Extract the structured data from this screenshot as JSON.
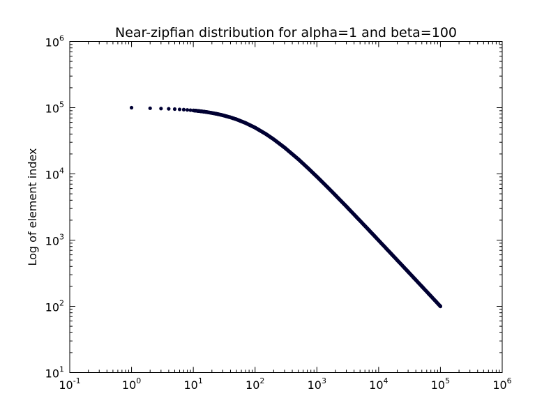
{
  "chart_data": {
    "type": "scatter",
    "title": "Near-zipfian distribution for alpha=1 and beta=100",
    "xlabel": "",
    "ylabel": "Log of element index",
    "x_scale": "log",
    "y_scale": "log",
    "xlim": [
      0.1,
      1000000
    ],
    "ylim": [
      10,
      1000000
    ],
    "x_ticks": [
      {
        "base": "10",
        "exp": "-1",
        "value": 0.1
      },
      {
        "base": "10",
        "exp": "0",
        "value": 1
      },
      {
        "base": "10",
        "exp": "1",
        "value": 10
      },
      {
        "base": "10",
        "exp": "2",
        "value": 100
      },
      {
        "base": "10",
        "exp": "3",
        "value": 1000
      },
      {
        "base": "10",
        "exp": "4",
        "value": 10000
      },
      {
        "base": "10",
        "exp": "5",
        "value": 100000
      },
      {
        "base": "10",
        "exp": "6",
        "value": 1000000
      }
    ],
    "y_ticks": [
      {
        "base": "10",
        "exp": "1",
        "value": 10
      },
      {
        "base": "10",
        "exp": "2",
        "value": 100
      },
      {
        "base": "10",
        "exp": "3",
        "value": 1000
      },
      {
        "base": "10",
        "exp": "4",
        "value": 10000
      },
      {
        "base": "10",
        "exp": "5",
        "value": 100000
      },
      {
        "base": "10",
        "exp": "6",
        "value": 1000000
      }
    ],
    "grid": false,
    "marker_color": "#000033",
    "series": [
      {
        "x": [
          1,
          2,
          3,
          4,
          5,
          6,
          7,
          8,
          9,
          10,
          11,
          12,
          13,
          14,
          15,
          17,
          20,
          25,
          30,
          40,
          50,
          70,
          100,
          150,
          200,
          300,
          500,
          700,
          1000,
          1500,
          2000,
          3000,
          5000,
          7000,
          10000,
          15000,
          20000,
          30000,
          50000,
          70000,
          100000
        ],
        "y": [
          100000,
          98000,
          97000,
          96100,
          95200,
          94300,
          93500,
          92600,
          91700,
          90900,
          90100,
          89300,
          88500,
          87700,
          87000,
          85500,
          83300,
          80000,
          76900,
          71400,
          66700,
          58800,
          50000,
          40000,
          33300,
          25000,
          16700,
          12500,
          9090,
          6250,
          4760,
          3230,
          1960,
          1410,
          990,
          662,
          498,
          333,
          200,
          143,
          100
        ]
      }
    ]
  }
}
